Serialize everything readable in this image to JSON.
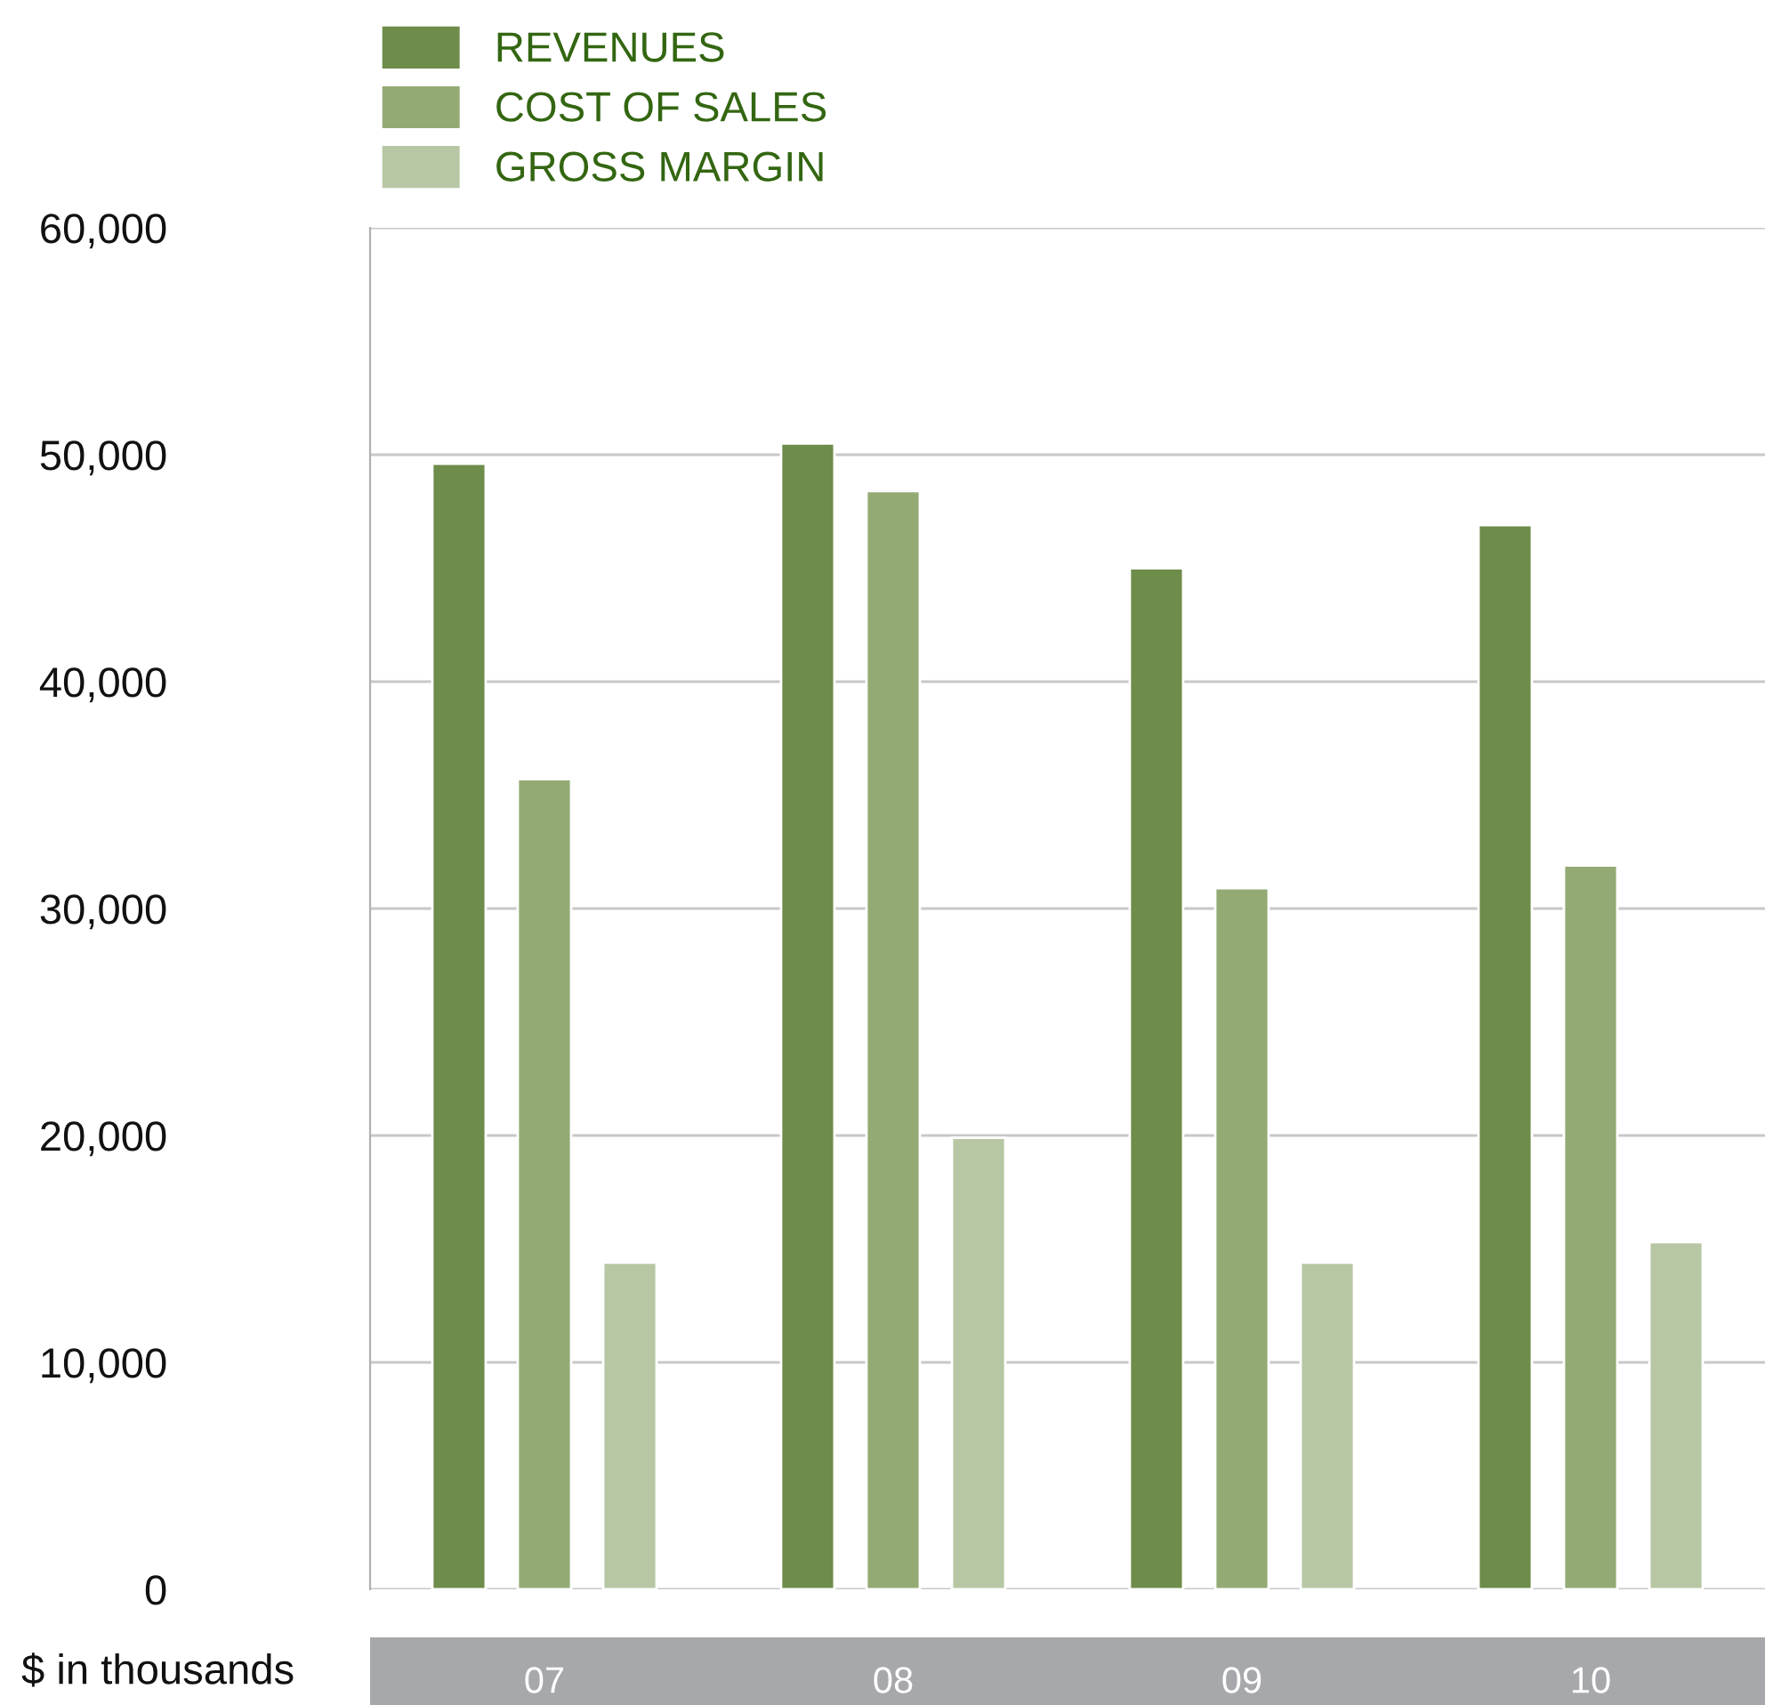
{
  "chart_data": {
    "type": "bar",
    "categories": [
      "07",
      "08",
      "09",
      "10"
    ],
    "xlabel": "$ in thousands",
    "series": [
      {
        "name": "REVENUES",
        "color": "#6e8c4a",
        "values": [
          49600,
          50500,
          45000,
          46900
        ]
      },
      {
        "name": "COST OF SALES",
        "color": "#93aa75",
        "values": [
          35700,
          48400,
          30900,
          31900
        ]
      },
      {
        "name": "GROSS MARGIN",
        "color": "#b7c7a4",
        "values": [
          14400,
          19900,
          14400,
          15300
        ]
      }
    ],
    "ylim": [
      0,
      60000
    ],
    "yticks": [
      {
        "value": 0,
        "label": "0"
      },
      {
        "value": 10000,
        "label": "10,000"
      },
      {
        "value": 20000,
        "label": "20,000"
      },
      {
        "value": 30000,
        "label": "30,000"
      },
      {
        "value": 40000,
        "label": "40,000"
      },
      {
        "value": 50000,
        "label": "50,000"
      },
      {
        "value": 60000,
        "label": "60,000"
      }
    ],
    "grid": "y",
    "legend": "top left"
  }
}
